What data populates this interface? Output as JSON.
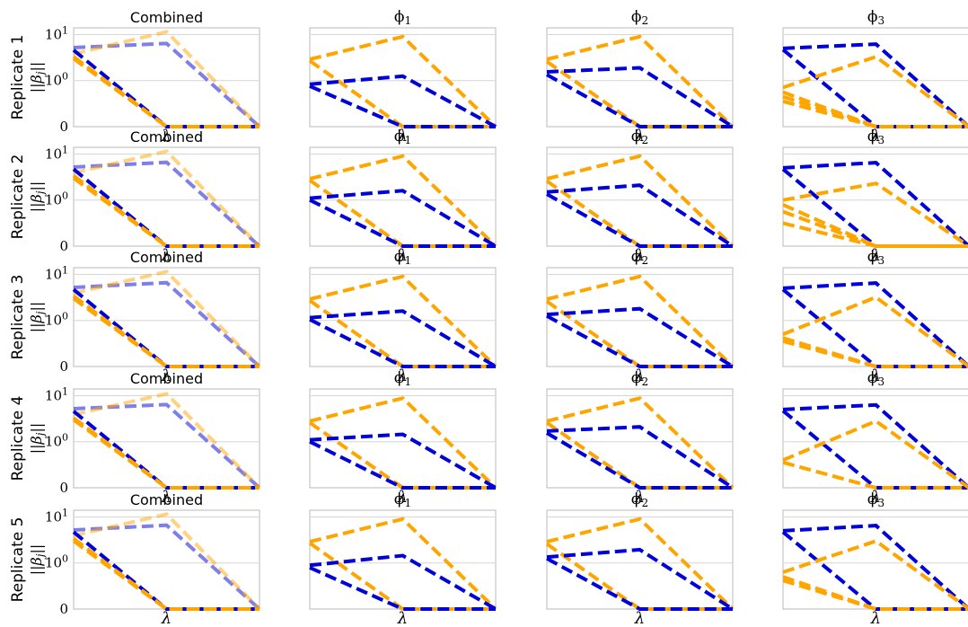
{
  "colors": {
    "feature_a": "#0000d8",
    "feature_b": "#ffa500"
  },
  "chart_data": {
    "type": "line",
    "layout": "grid 5 rows x 4 columns",
    "column_titles": [
      "Combined",
      "ϕ1",
      "ϕ2",
      "ϕ3"
    ],
    "row_labels": [
      "Replicate 1",
      "Replicate 2",
      "Replicate 3",
      "Replicate 4",
      "Replicate 5"
    ],
    "xlabel": "λ",
    "ylabel": "||βj||",
    "yscale": "symlog",
    "ylim": [
      0,
      14
    ],
    "yticks": [
      {
        "value": 0,
        "label": "0"
      },
      {
        "value": 1,
        "label": "10",
        "exp": "0"
      },
      {
        "value": 10,
        "label": "10",
        "exp": "1"
      }
    ],
    "grid": "horizontal",
    "x": [
      0,
      1,
      2
    ],
    "panels": [
      [
        {
          "series": [
            {
              "color": "feature_a",
              "alpha": 0.5,
              "values": [
                5.2,
                6.4,
                0
              ]
            },
            {
              "color": "feature_b",
              "alpha": 0.5,
              "values": [
                3.8,
                11.5,
                0
              ]
            },
            {
              "color": "feature_a",
              "values": [
                4.6,
                0,
                0
              ]
            },
            {
              "color": "feature_b",
              "values": [
                3.3,
                0,
                0
              ]
            },
            {
              "color": "feature_b",
              "values": [
                3.0,
                0,
                0
              ]
            }
          ]
        },
        {
          "series": [
            {
              "color": "feature_b",
              "values": [
                2.9,
                9.0,
                0
              ]
            },
            {
              "color": "feature_b",
              "values": [
                2.7,
                0,
                0
              ]
            },
            {
              "color": "feature_a",
              "values": [
                0.92,
                1.25,
                0
              ]
            },
            {
              "color": "feature_a",
              "values": [
                0.88,
                0,
                0
              ]
            }
          ]
        },
        {
          "series": [
            {
              "color": "feature_b",
              "values": [
                2.9,
                9.0,
                0
              ]
            },
            {
              "color": "feature_b",
              "values": [
                2.6,
                0,
                0
              ]
            },
            {
              "color": "feature_a",
              "values": [
                1.55,
                1.9,
                0
              ]
            },
            {
              "color": "feature_a",
              "values": [
                1.35,
                0,
                0
              ]
            }
          ]
        },
        {
          "series": [
            {
              "color": "feature_a",
              "values": [
                5.0,
                6.2,
                0
              ]
            },
            {
              "color": "feature_a",
              "values": [
                4.7,
                0,
                0
              ]
            },
            {
              "color": "feature_b",
              "values": [
                0.85,
                3.3,
                0
              ]
            },
            {
              "color": "feature_b",
              "values": [
                0.75,
                0,
                0
              ]
            },
            {
              "color": "feature_b",
              "values": [
                0.65,
                0,
                0
              ]
            },
            {
              "color": "feature_b",
              "values": [
                0.55,
                0,
                0
              ]
            }
          ]
        }
      ],
      [
        {
          "series": [
            {
              "color": "feature_a",
              "alpha": 0.5,
              "values": [
                5.2,
                6.6,
                0
              ]
            },
            {
              "color": "feature_b",
              "alpha": 0.5,
              "values": [
                3.9,
                11.5,
                0
              ]
            },
            {
              "color": "feature_a",
              "values": [
                4.7,
                0,
                0
              ]
            },
            {
              "color": "feature_b",
              "values": [
                3.4,
                0,
                0
              ]
            },
            {
              "color": "feature_b",
              "values": [
                3.0,
                0,
                0
              ]
            }
          ]
        },
        {
          "series": [
            {
              "color": "feature_b",
              "values": [
                2.9,
                9.0,
                0
              ]
            },
            {
              "color": "feature_b",
              "values": [
                2.7,
                0,
                0
              ]
            },
            {
              "color": "feature_a",
              "values": [
                1.1,
                1.6,
                0
              ]
            },
            {
              "color": "feature_a",
              "values": [
                1.0,
                0,
                0
              ]
            }
          ]
        },
        {
          "series": [
            {
              "color": "feature_b",
              "values": [
                2.9,
                9.0,
                0
              ]
            },
            {
              "color": "feature_b",
              "values": [
                2.6,
                0,
                0
              ]
            },
            {
              "color": "feature_a",
              "values": [
                1.5,
                2.1,
                0
              ]
            },
            {
              "color": "feature_a",
              "values": [
                1.35,
                0,
                0
              ]
            }
          ]
        },
        {
          "series": [
            {
              "color": "feature_a",
              "values": [
                5.0,
                6.5,
                0
              ]
            },
            {
              "color": "feature_a",
              "values": [
                4.7,
                0,
                0
              ]
            },
            {
              "color": "feature_b",
              "values": [
                1.0,
                2.3,
                0
              ]
            },
            {
              "color": "feature_b",
              "values": [
                0.9,
                0,
                0
              ]
            },
            {
              "color": "feature_b",
              "values": [
                0.75,
                0,
                0
              ]
            },
            {
              "color": "feature_b",
              "values": [
                0.5,
                0,
                0
              ]
            }
          ]
        }
      ],
      [
        {
          "series": [
            {
              "color": "feature_a",
              "alpha": 0.5,
              "values": [
                5.2,
                6.6,
                0
              ]
            },
            {
              "color": "feature_b",
              "alpha": 0.5,
              "values": [
                3.9,
                11.5,
                0
              ]
            },
            {
              "color": "feature_a",
              "values": [
                4.7,
                0,
                0
              ]
            },
            {
              "color": "feature_b",
              "values": [
                3.4,
                0,
                0
              ]
            },
            {
              "color": "feature_b",
              "values": [
                3.0,
                0,
                0
              ]
            }
          ]
        },
        {
          "series": [
            {
              "color": "feature_b",
              "values": [
                2.9,
                9.0,
                0
              ]
            },
            {
              "color": "feature_b",
              "values": [
                2.7,
                0,
                0
              ]
            },
            {
              "color": "feature_a",
              "values": [
                1.15,
                1.6,
                0
              ]
            },
            {
              "color": "feature_a",
              "values": [
                1.05,
                0,
                0
              ]
            }
          ]
        },
        {
          "series": [
            {
              "color": "feature_b",
              "values": [
                2.9,
                9.0,
                0
              ]
            },
            {
              "color": "feature_b",
              "values": [
                2.6,
                0,
                0
              ]
            },
            {
              "color": "feature_a",
              "values": [
                1.35,
                1.8,
                0
              ]
            },
            {
              "color": "feature_a",
              "values": [
                1.25,
                0,
                0
              ]
            }
          ]
        },
        {
          "series": [
            {
              "color": "feature_a",
              "values": [
                5.0,
                6.5,
                0
              ]
            },
            {
              "color": "feature_a",
              "values": [
                4.7,
                0,
                0
              ]
            },
            {
              "color": "feature_b",
              "values": [
                0.7,
                3.2,
                0
              ]
            },
            {
              "color": "feature_b",
              "values": [
                0.62,
                0,
                0
              ]
            },
            {
              "color": "feature_b",
              "values": [
                0.55,
                0,
                0
              ]
            }
          ]
        }
      ],
      [
        {
          "series": [
            {
              "color": "feature_a",
              "alpha": 0.5,
              "values": [
                5.2,
                6.4,
                0
              ]
            },
            {
              "color": "feature_b",
              "alpha": 0.5,
              "values": [
                3.9,
                11.0,
                0
              ]
            },
            {
              "color": "feature_a",
              "values": [
                4.6,
                0,
                0
              ]
            },
            {
              "color": "feature_b",
              "values": [
                3.3,
                0,
                0
              ]
            },
            {
              "color": "feature_b",
              "values": [
                3.0,
                0,
                0
              ]
            }
          ]
        },
        {
          "series": [
            {
              "color": "feature_b",
              "values": [
                2.8,
                8.8,
                0
              ]
            },
            {
              "color": "feature_b",
              "values": [
                2.6,
                0,
                0
              ]
            },
            {
              "color": "feature_a",
              "values": [
                1.1,
                1.45,
                0
              ]
            },
            {
              "color": "feature_a",
              "values": [
                1.0,
                0,
                0
              ]
            }
          ]
        },
        {
          "series": [
            {
              "color": "feature_b",
              "values": [
                2.8,
                8.8,
                0
              ]
            },
            {
              "color": "feature_b",
              "values": [
                2.6,
                0,
                0
              ]
            },
            {
              "color": "feature_a",
              "values": [
                1.7,
                2.1,
                0
              ]
            },
            {
              "color": "feature_a",
              "values": [
                1.55,
                0,
                0
              ]
            }
          ]
        },
        {
          "series": [
            {
              "color": "feature_a",
              "values": [
                5.0,
                6.3,
                0
              ]
            },
            {
              "color": "feature_a",
              "values": [
                4.7,
                0,
                0
              ]
            },
            {
              "color": "feature_b",
              "values": [
                0.6,
                2.8,
                0
              ]
            },
            {
              "color": "feature_b",
              "values": [
                0.55,
                0,
                0
              ]
            }
          ]
        }
      ],
      [
        {
          "series": [
            {
              "color": "feature_a",
              "alpha": 0.5,
              "values": [
                5.2,
                6.6,
                0
              ]
            },
            {
              "color": "feature_b",
              "alpha": 0.5,
              "values": [
                3.9,
                11.5,
                0
              ]
            },
            {
              "color": "feature_a",
              "values": [
                4.7,
                0,
                0
              ]
            },
            {
              "color": "feature_b",
              "values": [
                3.4,
                0,
                0
              ]
            },
            {
              "color": "feature_b",
              "values": [
                3.0,
                0,
                0
              ]
            }
          ]
        },
        {
          "series": [
            {
              "color": "feature_b",
              "values": [
                2.9,
                9.0,
                0
              ]
            },
            {
              "color": "feature_b",
              "values": [
                2.7,
                0,
                0
              ]
            },
            {
              "color": "feature_a",
              "values": [
                0.95,
                1.45,
                0
              ]
            },
            {
              "color": "feature_a",
              "values": [
                0.9,
                0,
                0
              ]
            }
          ]
        },
        {
          "series": [
            {
              "color": "feature_b",
              "values": [
                2.9,
                9.0,
                0
              ]
            },
            {
              "color": "feature_b",
              "values": [
                2.6,
                0,
                0
              ]
            },
            {
              "color": "feature_a",
              "values": [
                1.35,
                1.95,
                0
              ]
            },
            {
              "color": "feature_a",
              "values": [
                1.25,
                0,
                0
              ]
            }
          ]
        },
        {
          "series": [
            {
              "color": "feature_a",
              "values": [
                5.0,
                6.5,
                0
              ]
            },
            {
              "color": "feature_a",
              "values": [
                4.7,
                0,
                0
              ]
            },
            {
              "color": "feature_b",
              "values": [
                0.8,
                3.0,
                0
              ]
            },
            {
              "color": "feature_b",
              "values": [
                0.7,
                0,
                0
              ]
            },
            {
              "color": "feature_b",
              "values": [
                0.62,
                0,
                0
              ]
            }
          ]
        }
      ]
    ]
  }
}
